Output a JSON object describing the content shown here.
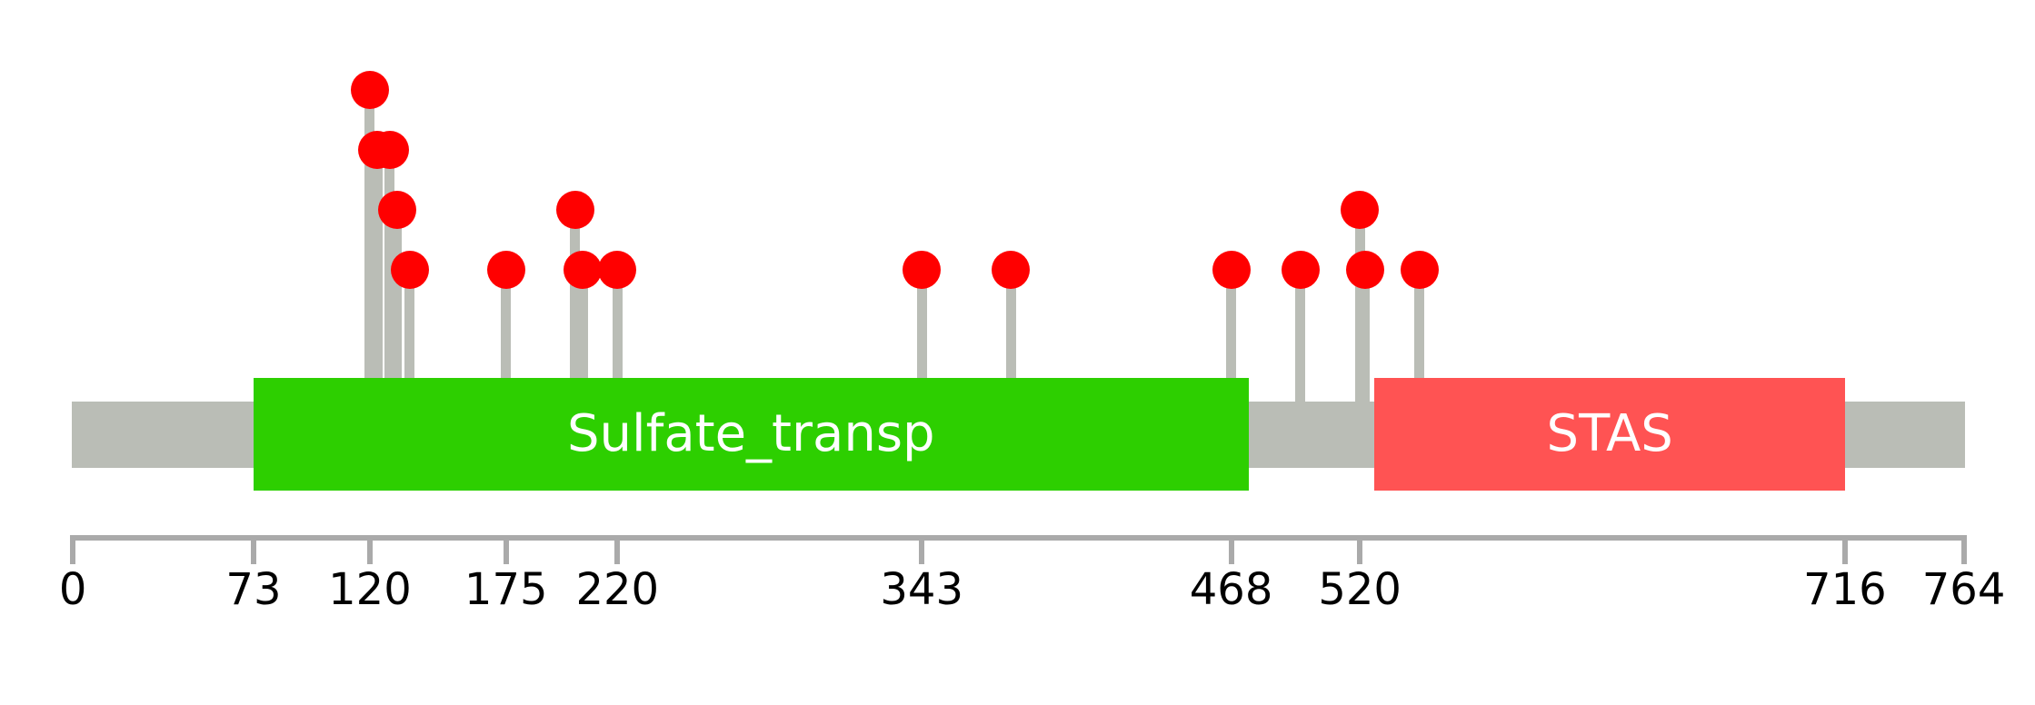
{
  "chart_data": {
    "type": "lollipop",
    "description": "Protein domain lollipop plot: gray backbone with two labeled domains and red mutation lollipops on gray stems above, numeric residue axis below",
    "protein_length": 764,
    "xlim": [
      0,
      764
    ],
    "axis_ticks": [
      {
        "value": 0,
        "label": "0",
        "end_tick": true
      },
      {
        "value": 73,
        "label": "73",
        "end_tick": false
      },
      {
        "value": 120,
        "label": "120",
        "end_tick": false
      },
      {
        "value": 175,
        "label": "175",
        "end_tick": false
      },
      {
        "value": 220,
        "label": "220",
        "end_tick": false
      },
      {
        "value": 343,
        "label": "343",
        "end_tick": false
      },
      {
        "value": 468,
        "label": "468",
        "end_tick": false
      },
      {
        "value": 520,
        "label": "520",
        "end_tick": false
      },
      {
        "value": 716,
        "label": "716",
        "end_tick": false
      },
      {
        "value": 764,
        "label": "764",
        "end_tick": true
      }
    ],
    "domains": [
      {
        "label": "Sulfate_transp",
        "start": 73,
        "end": 475,
        "color": "#2dcf00",
        "text_color": "#ffffff"
      },
      {
        "label": "STAS",
        "start": 526,
        "end": 716,
        "color": "#ff5353",
        "text_color": "#ffffff"
      }
    ],
    "lollipops": [
      {
        "pos": 120,
        "stack_level": 3
      },
      {
        "pos": 123,
        "stack_level": 2
      },
      {
        "pos": 128,
        "stack_level": 2
      },
      {
        "pos": 131,
        "stack_level": 1
      },
      {
        "pos": 136,
        "stack_level": 0
      },
      {
        "pos": 175,
        "stack_level": 0
      },
      {
        "pos": 203,
        "stack_level": 1
      },
      {
        "pos": 206,
        "stack_level": 0
      },
      {
        "pos": 220,
        "stack_level": 0
      },
      {
        "pos": 343,
        "stack_level": 0
      },
      {
        "pos": 379,
        "stack_level": 0
      },
      {
        "pos": 468,
        "stack_level": 0
      },
      {
        "pos": 496,
        "stack_level": 0
      },
      {
        "pos": 520,
        "stack_level": 1
      },
      {
        "pos": 522,
        "stack_level": 0
      },
      {
        "pos": 544,
        "stack_level": 0
      }
    ],
    "colors": {
      "background": "#ffffff",
      "backbone": "#babdb6",
      "stem": "#babdb6",
      "lollipop": "#ff0000",
      "axis": "#aaaaaa",
      "tick_label": "#000000"
    }
  }
}
